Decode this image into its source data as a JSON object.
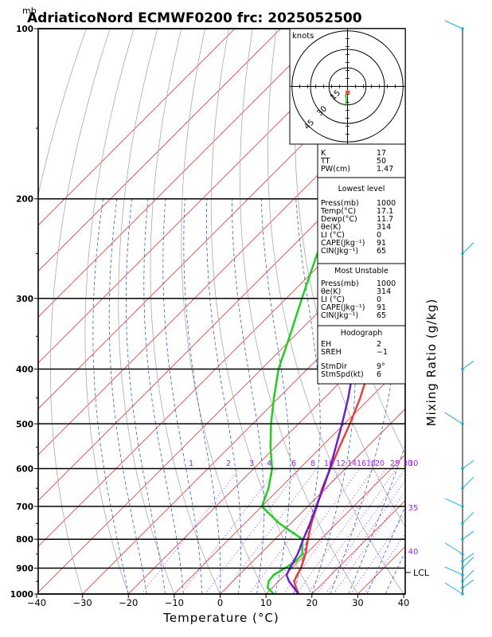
{
  "title": "AdriaticoNord ECMWF0200 frc: 2025052500",
  "pressure_unit": "mb",
  "xlabel": "Temperature (°C)",
  "right_label": "Mixing Ratio (g/kg)",
  "hodograph": {
    "unit": "knots",
    "ring_labels": [
      "15",
      "30",
      "45"
    ]
  },
  "lcl_label": "LCL",
  "x_ticks": [
    "−40",
    "−30",
    "−20",
    "−10",
    "0",
    "10",
    "20",
    "30",
    "40"
  ],
  "p_ticks": [
    "100",
    "200",
    "300",
    "400",
    "500",
    "600",
    "700",
    "800",
    "900",
    "1000"
  ],
  "mixing_labels": [
    "1",
    "2",
    "3",
    "4",
    "6",
    "8",
    "10",
    "12",
    "14",
    "16",
    "18",
    "20",
    "25",
    "30"
  ],
  "theta_e_labels": [
    "30",
    "35",
    "40"
  ],
  "panels": {
    "indices": [
      [
        "K",
        "17"
      ],
      [
        "TT",
        "50"
      ],
      [
        "PW(cm)",
        "1.47"
      ]
    ],
    "lowest_title": "Lowest level",
    "lowest": [
      [
        "Press(mb)",
        "1000"
      ],
      [
        "Temp(°C)",
        "17.1"
      ],
      [
        "Dewp(°C)",
        "11.7"
      ],
      [
        "θe(K)",
        "314"
      ],
      [
        "LI (°C)",
        "0"
      ],
      [
        "CAPE(Jkg⁻¹)",
        "91"
      ],
      [
        "CIN(Jkg⁻¹)",
        "65"
      ]
    ],
    "unstable_title": "Most Unstable",
    "unstable": [
      [
        "Press(mb)",
        "1000"
      ],
      [
        "θe(K)",
        "314"
      ],
      [
        "LI (°C)",
        "0"
      ],
      [
        "CAPE(Jkg⁻¹)",
        "91"
      ],
      [
        "CIN(Jkg⁻¹)",
        "65"
      ]
    ],
    "hodo_title": "Hodograph",
    "hodo": [
      [
        "EH",
        "2"
      ],
      [
        "SREH",
        "−1"
      ],
      [
        "StmDir",
        "9°"
      ],
      [
        "StmSpd(kt)",
        "6"
      ]
    ]
  },
  "colors": {
    "temperature": "#e8413c",
    "dewpoint": "#22cc22",
    "parcel": "#6a1fd1",
    "isotherm": "#e53030",
    "dry_adiabat": "#a9a9a9",
    "moist_adiabat": "#2f5fd6",
    "mixing_ratio": "#a020f0",
    "wind": "#1ab0d8",
    "frame": "#000000"
  },
  "chart_data": {
    "type": "line",
    "title": "AdriaticoNord ECMWF0200 frc: 2025052500",
    "xlabel": "Temperature (°C)",
    "ylabel": "mb",
    "xlim": [
      -40,
      40
    ],
    "ylim": [
      1000,
      100
    ],
    "y_scale": "log",
    "series": [
      {
        "role": "temperature",
        "points": [
          [
            1000,
            17.1
          ],
          [
            975,
            15.2
          ],
          [
            950,
            13.4
          ],
          [
            925,
            12.6
          ],
          [
            900,
            12.0
          ],
          [
            850,
            9.9
          ],
          [
            800,
            7.2
          ],
          [
            750,
            4.5
          ],
          [
            700,
            2.0
          ],
          [
            650,
            -0.8
          ],
          [
            600,
            -3.3
          ],
          [
            550,
            -6.0
          ],
          [
            500,
            -8.8
          ],
          [
            450,
            -12.2
          ],
          [
            400,
            -16.5
          ],
          [
            350,
            -21.8
          ],
          [
            300,
            -26.8
          ],
          [
            250,
            -32.5
          ],
          [
            200,
            -24.5
          ],
          [
            150,
            -13.0
          ],
          [
            100,
            2.0
          ]
        ]
      },
      {
        "role": "dewpoint",
        "points": [
          [
            1000,
            11.7
          ],
          [
            975,
            9.0
          ],
          [
            950,
            7.8
          ],
          [
            925,
            7.5
          ],
          [
            900,
            8.5
          ],
          [
            875,
            9.4
          ],
          [
            850,
            9.2
          ],
          [
            800,
            6.0
          ],
          [
            750,
            -2.5
          ],
          [
            700,
            -10.0
          ],
          [
            650,
            -12.5
          ],
          [
            600,
            -16.0
          ],
          [
            550,
            -21.0
          ],
          [
            500,
            -26.0
          ],
          [
            450,
            -31.0
          ],
          [
            400,
            -36.3
          ],
          [
            350,
            -41.0
          ],
          [
            300,
            -46.6
          ],
          [
            250,
            -53.0
          ],
          [
            200,
            -56.0
          ],
          [
            150,
            -60.0
          ],
          [
            100,
            -67.0
          ]
        ]
      },
      {
        "role": "parcel",
        "points": [
          [
            1000,
            17.1
          ],
          [
            950,
            12.3
          ],
          [
            925,
            10.3
          ],
          [
            900,
            9.6
          ],
          [
            850,
            8.2
          ],
          [
            800,
            6.2
          ],
          [
            750,
            4.2
          ],
          [
            700,
            1.9
          ],
          [
            650,
            -0.6
          ],
          [
            600,
            -3.4
          ],
          [
            550,
            -6.8
          ],
          [
            500,
            -10.5
          ],
          [
            450,
            -14.8
          ],
          [
            400,
            -20.0
          ],
          [
            350,
            -26.5
          ],
          [
            300,
            -34.0
          ],
          [
            250,
            -43.3
          ],
          [
            200,
            -54.5
          ],
          [
            150,
            -67.0
          ],
          [
            100,
            -82.0
          ]
        ]
      }
    ]
  }
}
